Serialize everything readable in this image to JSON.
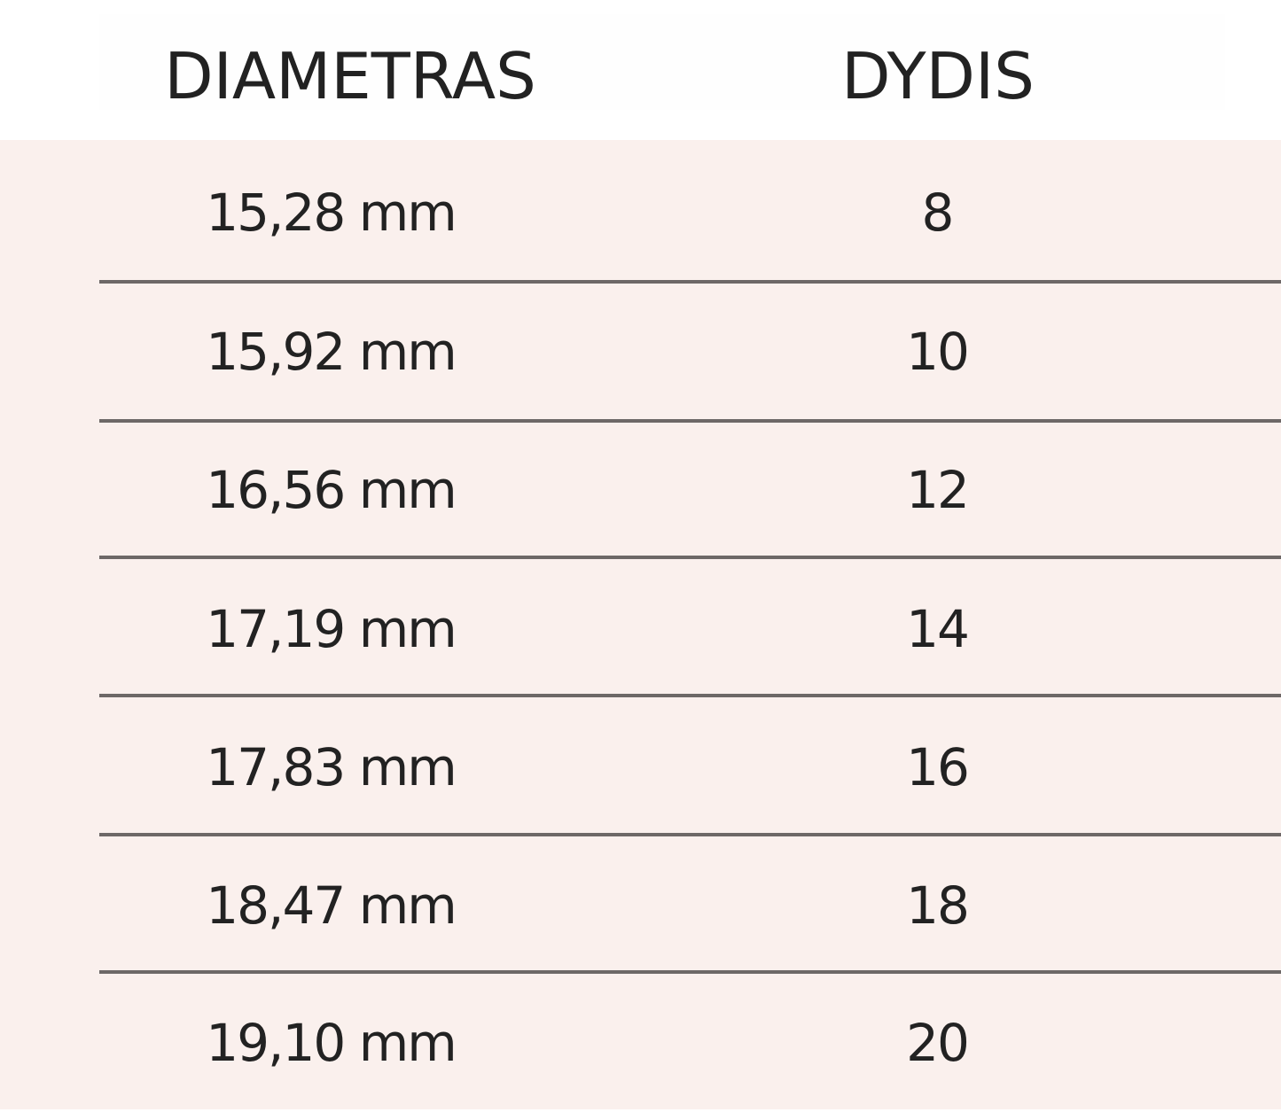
{
  "table": {
    "headers": [
      "DIAMETRAS",
      "DYDIS"
    ],
    "rows": [
      [
        "15,28 mm",
        "8"
      ],
      [
        "15,92 mm",
        "10"
      ],
      [
        "16,56 mm",
        "12"
      ],
      [
        "17,19 mm",
        "14"
      ],
      [
        "17,83 mm",
        "16"
      ],
      [
        "18,47 mm",
        "18"
      ],
      [
        "19,10 mm",
        "20"
      ]
    ]
  },
  "colors": {
    "row_background": "#faf0ed",
    "divider": "#6d6867",
    "text": "#222222"
  }
}
